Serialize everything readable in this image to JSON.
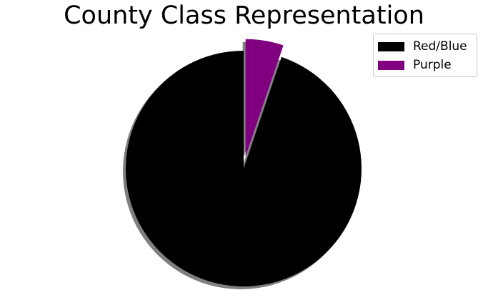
{
  "chart_data": {
    "type": "pie",
    "title": "County Class Representation",
    "categories": [
      "Red/Blue",
      "Purple"
    ],
    "values": [
      94.8,
      5.2
    ],
    "colors": [
      "#000000",
      "#800080"
    ],
    "explode": [
      0,
      0.1
    ],
    "shadow": true,
    "start_angle_deg": 90,
    "legend": {
      "placement": "top-right",
      "entries": [
        "Red/Blue",
        "Purple"
      ]
    }
  }
}
